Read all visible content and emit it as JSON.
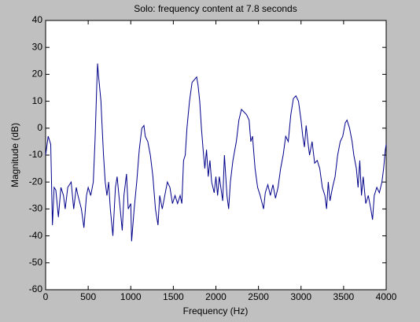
{
  "chart_data": {
    "type": "line",
    "title": "Solo: frequency content at 7.8 seconds",
    "xlabel": "Frequency (Hz)",
    "ylabel": "Magnitude (dB)",
    "color": "#00008b",
    "x": [
      0,
      30,
      60,
      80,
      100,
      120,
      150,
      180,
      210,
      230,
      260,
      300,
      330,
      360,
      380,
      420,
      450,
      480,
      500,
      530,
      560,
      580,
      600,
      610,
      620,
      650,
      660,
      680,
      700,
      720,
      740,
      760,
      790,
      820,
      840,
      870,
      900,
      920,
      950,
      970,
      1000,
      1010,
      1040,
      1070,
      1100,
      1130,
      1155,
      1170,
      1200,
      1230,
      1260,
      1290,
      1320,
      1340,
      1370,
      1400,
      1430,
      1460,
      1490,
      1520,
      1550,
      1580,
      1600,
      1620,
      1640,
      1660,
      1690,
      1720,
      1774,
      1790,
      1810,
      1830,
      1850,
      1870,
      1890,
      1910,
      1930,
      1950,
      1980,
      2000,
      2020,
      2040,
      2080,
      2100,
      2130,
      2150,
      2170,
      2200,
      2240,
      2270,
      2300,
      2330,
      2360,
      2390,
      2410,
      2430,
      2460,
      2490,
      2520,
      2560,
      2580,
      2610,
      2640,
      2670,
      2700,
      2730,
      2760,
      2790,
      2820,
      2850,
      2880,
      2910,
      2940,
      2970,
      3000,
      3020,
      3040,
      3060,
      3080,
      3100,
      3130,
      3160,
      3190,
      3220,
      3250,
      3280,
      3300,
      3320,
      3340,
      3370,
      3400,
      3430,
      3460,
      3490,
      3520,
      3540,
      3570,
      3600,
      3620,
      3650,
      3670,
      3690,
      3710,
      3730,
      3760,
      3790,
      3820,
      3840,
      3860,
      3890,
      3920,
      3950,
      3970,
      3990,
      4000
    ],
    "values": [
      -10,
      -3,
      -6,
      -36,
      -22,
      -23,
      -33,
      -22,
      -25,
      -30,
      -22,
      -20,
      -30,
      -22,
      -25,
      -30,
      -37,
      -25,
      -22,
      -25,
      -20,
      -5,
      15,
      24,
      20,
      10,
      3,
      -10,
      -20,
      -25,
      -20,
      -30,
      -40,
      -22,
      -18,
      -28,
      -38,
      -25,
      -17,
      -30,
      -28,
      -42,
      -30,
      -20,
      -8,
      0,
      1,
      -3,
      -5,
      -10,
      -18,
      -30,
      -36,
      -25,
      -30,
      -25,
      -20,
      -22,
      -28,
      -25,
      -28,
      -25,
      -28,
      -12,
      -10,
      0,
      10,
      17,
      19,
      16,
      10,
      0,
      -8,
      -15,
      -8,
      -18,
      -12,
      -20,
      -24,
      -18,
      -25,
      -18,
      -27,
      -10,
      -25,
      -30,
      -20,
      -12,
      -5,
      3,
      7,
      6,
      5,
      3,
      -5,
      -3,
      -15,
      -22,
      -25,
      -30,
      -24,
      -21,
      -25,
      -21,
      -26,
      -22,
      -15,
      -10,
      -3,
      -5,
      5,
      11,
      12,
      10,
      3,
      -3,
      -7,
      1,
      -5,
      -10,
      -5,
      -13,
      -12,
      -15,
      -22,
      -25,
      -30,
      -20,
      -27,
      -22,
      -18,
      -10,
      -5,
      -3,
      2,
      3,
      0,
      -5,
      -10,
      -15,
      -22,
      -12,
      -25,
      -18,
      -28,
      -25,
      -30,
      -34,
      -25,
      -22,
      -24,
      -20,
      -15,
      -8,
      -6
    ],
    "xlim": [
      0,
      4000
    ],
    "ylim": [
      -60,
      40
    ],
    "xticks": [
      0,
      500,
      1000,
      1500,
      2000,
      2500,
      3000,
      3500,
      4000
    ],
    "yticks": [
      -60,
      -50,
      -40,
      -30,
      -20,
      -10,
      0,
      10,
      20,
      30,
      40
    ]
  }
}
